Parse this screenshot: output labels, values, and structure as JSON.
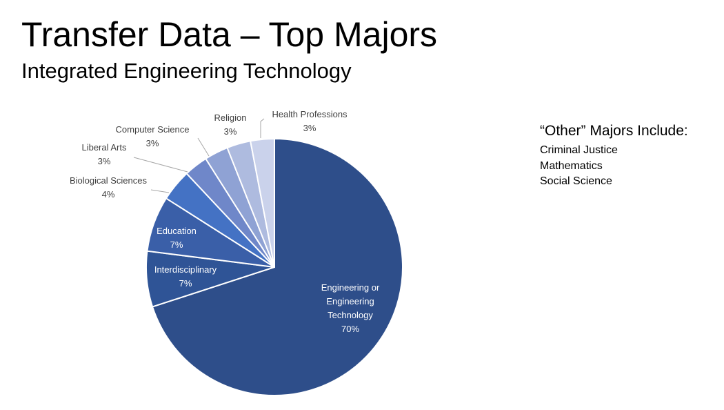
{
  "slide": {
    "title": "Transfer Data – Top Majors",
    "subtitle": "Integrated Engineering Technology"
  },
  "other_majors": {
    "heading": "“Other” Majors Include:",
    "items": [
      "Criminal Justice",
      "Mathematics",
      "Social Science"
    ]
  },
  "chart_data": {
    "type": "pie",
    "title": "",
    "slices": [
      {
        "label": "Engineering or Engineering Technology",
        "label_lines": [
          "Engineering or",
          "Engineering",
          "Technology"
        ],
        "value_label": "70%",
        "value": 70,
        "color": "#2e4e8a",
        "label_color": "#ffffff"
      },
      {
        "label": "Interdisciplinary",
        "label_lines": [
          "Interdisciplinary"
        ],
        "value_label": "7%",
        "value": 7,
        "color": "#2f5496",
        "label_color": "#ffffff"
      },
      {
        "label": "Education",
        "label_lines": [
          "Education"
        ],
        "value_label": "7%",
        "value": 7,
        "color": "#3a5fa8",
        "label_color": "#ffffff"
      },
      {
        "label": "Biological Sciences",
        "label_lines": [
          "Biological Sciences"
        ],
        "value_label": "4%",
        "value": 4,
        "color": "#4472c4",
        "label_color": "#404040"
      },
      {
        "label": "Liberal Arts",
        "label_lines": [
          "Liberal Arts"
        ],
        "value_label": "3%",
        "value": 3,
        "color": "#6f87c9",
        "label_color": "#404040"
      },
      {
        "label": "Computer Science",
        "label_lines": [
          "Computer Science"
        ],
        "value_label": "3%",
        "value": 3,
        "color": "#8fa2d4",
        "label_color": "#404040"
      },
      {
        "label": "Religion",
        "label_lines": [
          "Religion"
        ],
        "value_label": "3%",
        "value": 3,
        "color": "#aebbdf",
        "label_color": "#404040"
      },
      {
        "label": "Health Professions",
        "label_lines": [
          "Health Professions"
        ],
        "value_label": "3%",
        "value": 3,
        "color": "#cad2eb",
        "label_color": "#404040"
      }
    ]
  }
}
